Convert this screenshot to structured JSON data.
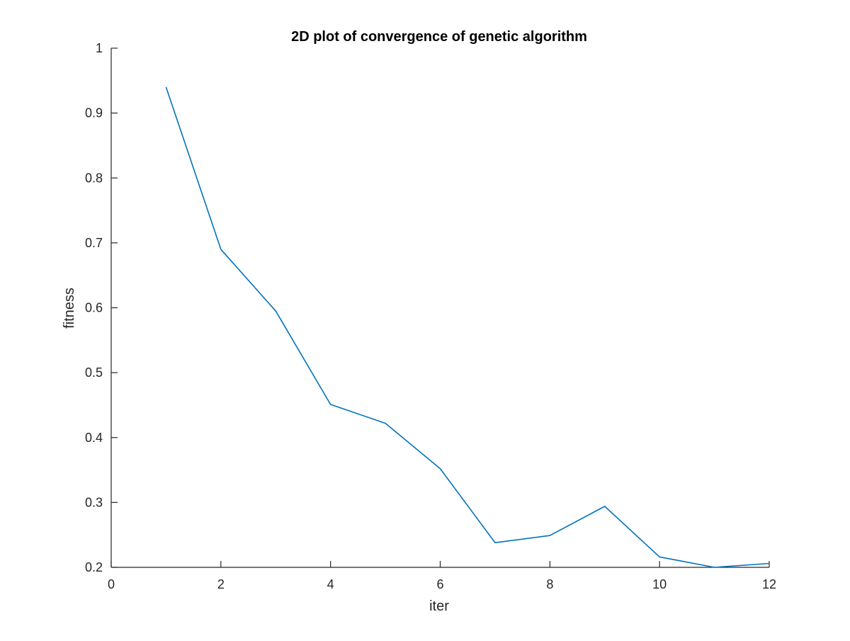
{
  "chart_data": {
    "type": "line",
    "title": "2D plot of  convergence of genetic algorithm",
    "xlabel": "iter",
    "ylabel": "fitness",
    "xlim": [
      0,
      12
    ],
    "ylim": [
      0.2,
      1
    ],
    "xticks": [
      0,
      2,
      4,
      6,
      8,
      10,
      12
    ],
    "yticks": [
      0.2,
      0.3,
      0.4,
      0.5,
      0.6,
      0.7,
      0.8,
      0.9,
      1
    ],
    "xtick_labels": [
      "0",
      "2",
      "4",
      "6",
      "8",
      "10",
      "12"
    ],
    "ytick_labels": [
      "0.2",
      "0.3",
      "0.4",
      "0.5",
      "0.6",
      "0.7",
      "0.8",
      "0.9",
      "1"
    ],
    "grid": false,
    "legend": "none",
    "line_color": "#0072BD",
    "axis_color": "#262626",
    "series": [
      {
        "name": "fitness",
        "x": [
          1,
          2,
          3,
          4,
          5,
          6,
          7,
          8,
          9,
          10,
          11,
          12
        ],
        "y": [
          0.94,
          0.69,
          0.595,
          0.451,
          0.422,
          0.352,
          0.238,
          0.249,
          0.294,
          0.216,
          0.2,
          0.206
        ]
      }
    ]
  }
}
